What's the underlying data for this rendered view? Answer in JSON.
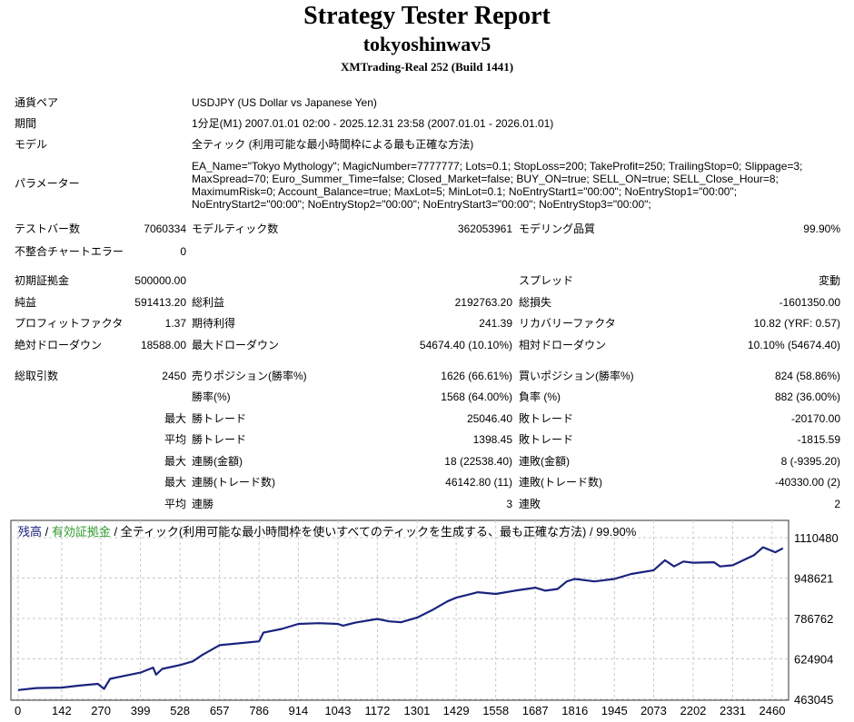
{
  "header": {
    "title": "Strategy Tester Report",
    "expert": "tokyoshinwav5",
    "server": "XMTrading-Real 252 (Build 1441)"
  },
  "info": [
    {
      "label": "通貨ペア",
      "value": "USDJPY (US Dollar vs Japanese Yen)"
    },
    {
      "label": "期間",
      "value": "1分足(M1) 2007.01.01 02:00 - 2025.12.31 23:58 (2007.01.01 - 2026.01.01)"
    },
    {
      "label": "モデル",
      "value": "全ティック (利用可能な最小時間枠による最も正確な方法)"
    }
  ],
  "parameters": {
    "label": "パラメーター",
    "lines": [
      "EA_Name=\"Tokyo Mythology\"; MagicNumber=7777777; Lots=0.1; StopLoss=200; TakeProfit=250; TrailingStop=0; Slippage=3;",
      "MaxSpread=70; Euro_Summer_Time=false; Closed_Market=false; BUY_ON=true; SELL_ON=true; SELL_Close_Hour=8;",
      "MaximumRisk=0; Account_Balance=true; MaxLot=5; MinLot=0.1; NoEntryStart1=\"00:00\"; NoEntryStop1=\"00:00\";",
      "NoEntryStart2=\"00:00\"; NoEntryStop2=\"00:00\"; NoEntryStart3=\"00:00\"; NoEntryStop3=\"00:00\";"
    ]
  },
  "stats": [
    [
      "テストバー数",
      "7060334",
      "モデルティック数",
      "362053961",
      "モデリング品質",
      "99.90%"
    ],
    [
      "不整合チャートエラー",
      "0",
      "",
      "",
      "",
      ""
    ],
    [
      "初期証拠金",
      "500000.00",
      "",
      "",
      "スプレッド",
      "変動"
    ],
    [
      "純益",
      "591413.20",
      "総利益",
      "2192763.20",
      "総損失",
      "-1601350.00"
    ],
    [
      "プロフィットファクタ",
      "1.37",
      "期待利得",
      "241.39",
      "リカバリーファクタ",
      "10.82 (YRF: 0.57)"
    ],
    [
      "絶対ドローダウン",
      "18588.00",
      "最大ドローダウン",
      "54674.40 (10.10%)",
      "相対ドローダウン",
      "10.10% (54674.40)"
    ],
    [
      "総取引数",
      "2450",
      "売りポジション(勝率%)",
      "1626 (66.61%)",
      "買いポジション(勝率%)",
      "824 (58.86%)"
    ],
    [
      "",
      "",
      "勝率(%)",
      "1568 (64.00%)",
      "負率 (%)",
      "882 (36.00%)"
    ],
    [
      "",
      "最大",
      "勝トレード",
      "25046.40",
      "敗トレード",
      "-20170.00"
    ],
    [
      "",
      "平均",
      "勝トレード",
      "1398.45",
      "敗トレード",
      "-1815.59"
    ],
    [
      "",
      "最大",
      "連勝(金額)",
      "18 (22538.40)",
      "連敗(金額)",
      "8 (-9395.20)"
    ],
    [
      "",
      "最大",
      "連勝(トレード数)",
      "46142.80 (11)",
      "連敗(トレード数)",
      "-40330.00 (2)"
    ],
    [
      "",
      "平均",
      "連勝",
      "3",
      "連敗",
      "2"
    ]
  ],
  "chart_data": {
    "type": "line",
    "legend": {
      "balance": "残高",
      "sep1": " / ",
      "equity": "有効証拠金",
      "rest": " / 全ティック(利用可能な最小時間枠を使いすべてのティックを生成する、最も正確な方法) / 99.90%"
    },
    "colors": {
      "balance": "#1a237e",
      "equity": "#2e9b2e",
      "grid": "#c8c8c8"
    },
    "x_ticks": [
      0,
      142,
      270,
      399,
      528,
      657,
      786,
      914,
      1043,
      1172,
      1301,
      1429,
      1558,
      1687,
      1816,
      1945,
      2073,
      2202,
      2331,
      2460
    ],
    "y_ticks": [
      1110480,
      948621,
      786762,
      624904,
      463045
    ],
    "xlim": [
      0,
      2500
    ],
    "ylim": [
      463045,
      1110480
    ],
    "grid": true,
    "series": [
      {
        "name": "残高",
        "points": [
          [
            0,
            500000
          ],
          [
            60,
            508000
          ],
          [
            142,
            510000
          ],
          [
            200,
            518000
          ],
          [
            260,
            525000
          ],
          [
            280,
            505000
          ],
          [
            300,
            545000
          ],
          [
            350,
            558000
          ],
          [
            399,
            570000
          ],
          [
            440,
            590000
          ],
          [
            450,
            562000
          ],
          [
            470,
            585000
          ],
          [
            528,
            600000
          ],
          [
            570,
            615000
          ],
          [
            600,
            640000
          ],
          [
            657,
            680000
          ],
          [
            700,
            685000
          ],
          [
            786,
            695000
          ],
          [
            800,
            730000
          ],
          [
            860,
            745000
          ],
          [
            914,
            765000
          ],
          [
            980,
            768000
          ],
          [
            1043,
            765000
          ],
          [
            1060,
            758000
          ],
          [
            1100,
            770000
          ],
          [
            1172,
            785000
          ],
          [
            1210,
            775000
          ],
          [
            1250,
            772000
          ],
          [
            1301,
            790000
          ],
          [
            1350,
            820000
          ],
          [
            1400,
            855000
          ],
          [
            1429,
            870000
          ],
          [
            1500,
            892000
          ],
          [
            1558,
            885000
          ],
          [
            1620,
            898000
          ],
          [
            1687,
            910000
          ],
          [
            1720,
            898000
          ],
          [
            1760,
            905000
          ],
          [
            1790,
            935000
          ],
          [
            1816,
            945000
          ],
          [
            1880,
            935000
          ],
          [
            1945,
            945000
          ],
          [
            2000,
            965000
          ],
          [
            2073,
            980000
          ],
          [
            2110,
            1020000
          ],
          [
            2140,
            995000
          ],
          [
            2170,
            1015000
          ],
          [
            2202,
            1010000
          ],
          [
            2270,
            1012000
          ],
          [
            2290,
            995000
          ],
          [
            2331,
            1000000
          ],
          [
            2400,
            1040000
          ],
          [
            2430,
            1072000
          ],
          [
            2470,
            1052000
          ],
          [
            2495,
            1068000
          ]
        ]
      }
    ]
  }
}
